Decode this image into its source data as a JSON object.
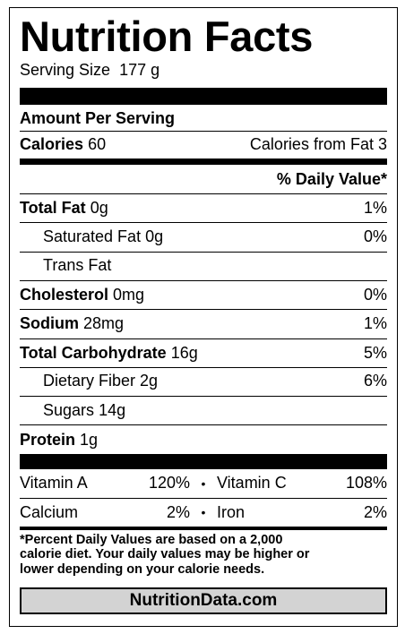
{
  "header": {
    "title": "Nutrition Facts",
    "serving_size_label": "Serving Size",
    "serving_size": "177 g"
  },
  "amount_per_serving": "Amount Per Serving",
  "calories": {
    "label": "Calories",
    "value": "60",
    "from_fat_label": "Calories from Fat",
    "from_fat": "3"
  },
  "daily_value_header": "% Daily Value*",
  "nutrients": [
    {
      "label": "Total Fat",
      "amount": "0g",
      "dv": "1%"
    },
    {
      "label": "Saturated Fat",
      "amount": "0g",
      "dv": "0%",
      "sub": true
    },
    {
      "label": "Trans Fat",
      "sub": true
    },
    {
      "label": "Cholesterol",
      "amount": "0mg",
      "dv": "0%"
    },
    {
      "label": "Sodium",
      "amount": "28mg",
      "dv": "1%"
    },
    {
      "label": "Total Carbohydrate",
      "amount": "16g",
      "dv": "5%"
    },
    {
      "label": "Dietary Fiber",
      "amount": "2g",
      "dv": "6%",
      "sub": true
    },
    {
      "label": "Sugars",
      "amount": "14g",
      "sub": true
    },
    {
      "label": "Protein",
      "amount": "1g"
    }
  ],
  "vitamins": [
    {
      "label": "Vitamin A",
      "dv": "120%"
    },
    {
      "label": "Vitamin C",
      "dv": "108%"
    },
    {
      "label": "Calcium",
      "dv": "2%"
    },
    {
      "label": "Iron",
      "dv": "2%"
    }
  ],
  "footnote": [
    "*Percent Daily Values are based on a 2,000",
    "calorie diet. Your daily values may be higher or",
    "lower depending on your calorie needs."
  ],
  "footer": "NutritionData.com"
}
